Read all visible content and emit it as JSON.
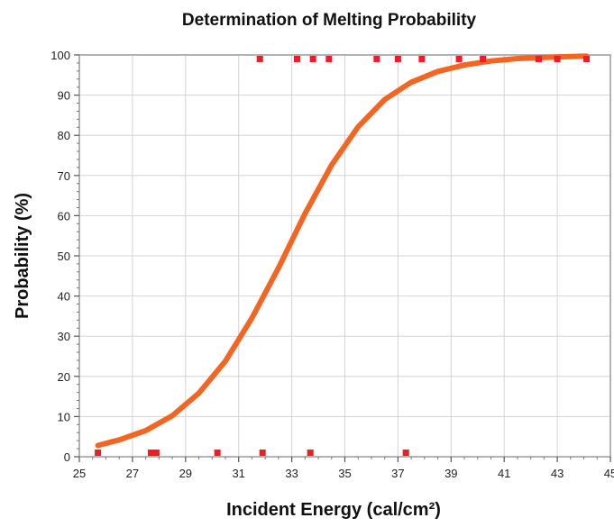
{
  "chart_data": {
    "type": "scatter",
    "title": "Determination of Melting Probability",
    "xlabel": "Incident Energy (cal/cm²)",
    "ylabel": "Probability (%)",
    "xlim": [
      25,
      45
    ],
    "ylim": [
      0,
      100
    ],
    "x_ticks": [
      25,
      27,
      29,
      31,
      33,
      35,
      37,
      39,
      41,
      43,
      45
    ],
    "y_ticks": [
      0,
      10,
      20,
      30,
      40,
      50,
      60,
      70,
      80,
      90,
      100
    ],
    "grid": true,
    "legend": "none",
    "series": [
      {
        "type": "scatter",
        "color": "#ee1c24",
        "points": [
          [
            25.7,
            1
          ],
          [
            27.7,
            1
          ],
          [
            27.9,
            1
          ],
          [
            30.2,
            1
          ],
          [
            31.9,
            1
          ],
          [
            33.7,
            1
          ],
          [
            37.3,
            1
          ],
          [
            31.8,
            99
          ],
          [
            33.2,
            99
          ],
          [
            33.8,
            99
          ],
          [
            34.4,
            99
          ],
          [
            36.2,
            99
          ],
          [
            37.0,
            99
          ],
          [
            37.9,
            99
          ],
          [
            39.3,
            99
          ],
          [
            40.2,
            99
          ],
          [
            42.3,
            99
          ],
          [
            43.0,
            99
          ],
          [
            44.1,
            99
          ]
        ]
      },
      {
        "type": "line",
        "color": "#f26522",
        "points": [
          [
            25.7,
            2.8
          ],
          [
            26.5,
            4.2
          ],
          [
            27.5,
            6.5
          ],
          [
            28.5,
            10.2
          ],
          [
            29.5,
            15.8
          ],
          [
            30.5,
            23.8
          ],
          [
            31.5,
            34.5
          ],
          [
            32.5,
            47.0
          ],
          [
            33.5,
            60.5
          ],
          [
            34.5,
            72.6
          ],
          [
            35.5,
            82.1
          ],
          [
            36.5,
            88.9
          ],
          [
            37.5,
            93.2
          ],
          [
            38.5,
            95.9
          ],
          [
            39.5,
            97.5
          ],
          [
            40.5,
            98.5
          ],
          [
            41.5,
            99.1
          ],
          [
            42.5,
            99.4
          ],
          [
            43.5,
            99.6
          ],
          [
            44.1,
            99.7
          ]
        ]
      }
    ]
  }
}
